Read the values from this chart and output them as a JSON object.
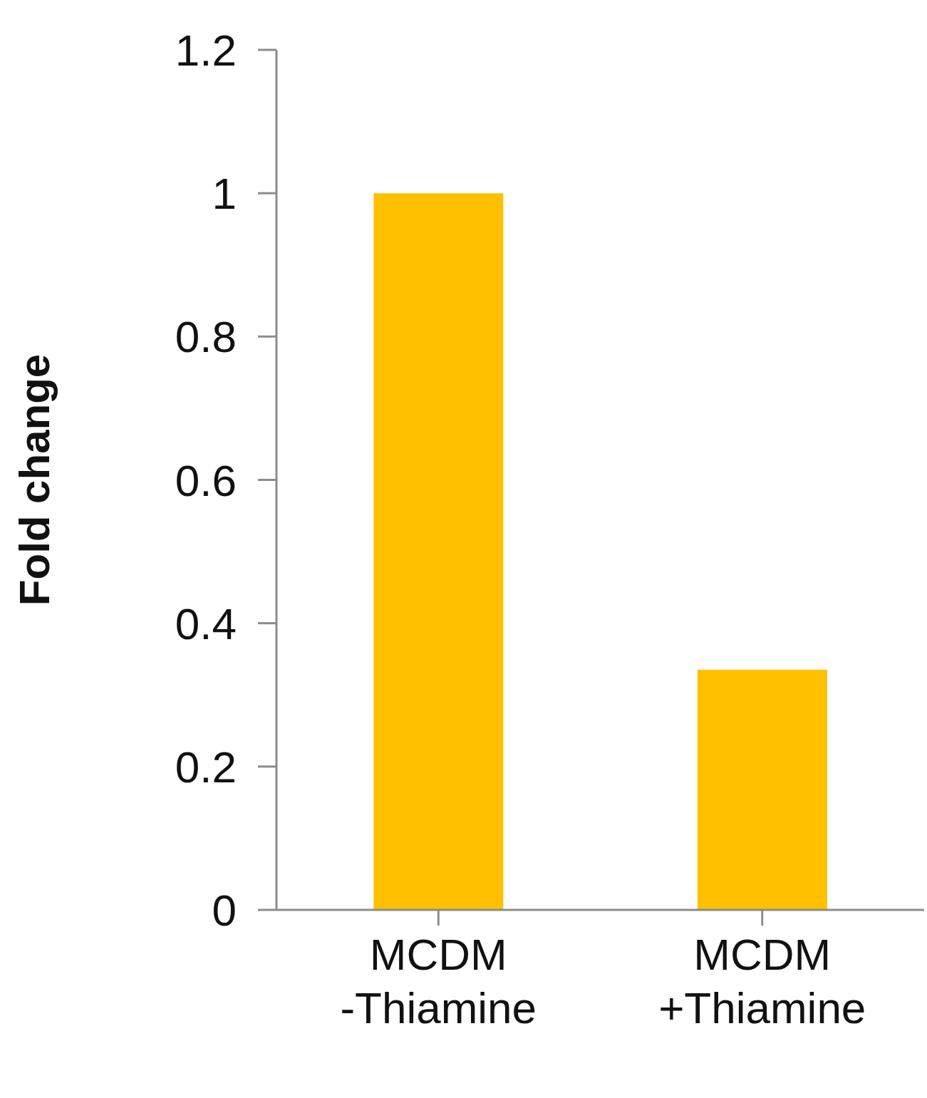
{
  "chart_data": {
    "type": "bar",
    "ylabel": "Fold change",
    "categories": [
      "MCDM -Thiamine",
      "MCDM +Thiamine"
    ],
    "values": [
      1,
      0.335
    ],
    "color": "#ffc000",
    "ylim": [
      0,
      1.2
    ],
    "yticks": [
      0,
      0.2,
      0.4,
      0.6,
      0.8,
      1,
      1.2
    ],
    "grid": false,
    "legend": false
  }
}
